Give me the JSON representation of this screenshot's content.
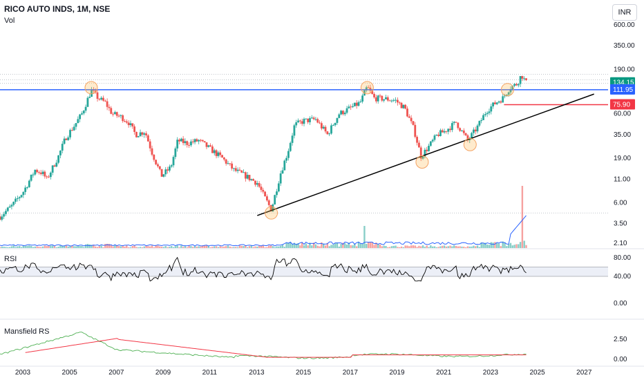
{
  "header": {
    "title": "RICO AUTO INDS, 1M, NSE",
    "volume_label": "Vol",
    "currency": "INR"
  },
  "panes": {
    "rsi_label": "RSI",
    "mansfield_label": "Mansfield RS"
  },
  "colors": {
    "up": "#26a69a",
    "down": "#ef5350",
    "blue": "#2962ff",
    "red": "#f23645",
    "teal": "#089981",
    "rsi": "#000000",
    "mansfield": "#4caf50",
    "mansfield_ma": "#f23645"
  },
  "chart_data": [
    {
      "type": "candlestick",
      "scale": "log",
      "x_range": [
        2002.0,
        2028.0
      ],
      "y_ticks": [
        600,
        350,
        190,
        60,
        35,
        19,
        11,
        6,
        3.5,
        2.1
      ],
      "y_tick_labels": [
        "600.00",
        "350.00",
        "190.00",
        "60.00",
        "35.00",
        "19.00",
        "11.00",
        "6.00",
        "3.50",
        "2.10"
      ],
      "x_ticks": [
        2003,
        2005,
        2007,
        2009,
        2011,
        2013,
        2015,
        2017,
        2019,
        2021,
        2023,
        2025,
        2027
      ],
      "price_labels": [
        {
          "value": 134.15,
          "label": "134.15",
          "color": "teal"
        },
        {
          "value": 111.95,
          "label": "111.95",
          "color": "blue"
        },
        {
          "value": 75.9,
          "label": "75.90",
          "color": "red"
        }
      ],
      "horizontal_line": {
        "value": 111.95
      },
      "dotted_lines": [
        167,
        145,
        132,
        4.6
      ],
      "red_level": {
        "value": 75.9,
        "x_start": 2023.55
      },
      "trendline": {
        "x1": 2013.0,
        "y1": 4.3,
        "x2": 2027.4,
        "y2": 100
      },
      "circles": [
        [
          2005.9,
          118
        ],
        [
          2017.7,
          118
        ],
        [
          2020.05,
          17.2
        ],
        [
          2022.1,
          27
        ],
        [
          2023.7,
          112
        ],
        [
          2013.6,
          4.6
        ]
      ],
      "path_points": [
        [
          2002.0,
          4.2
        ],
        [
          2002.5,
          5.5
        ],
        [
          2003.0,
          8
        ],
        [
          2003.5,
          14
        ],
        [
          2003.8,
          13
        ],
        [
          2004.0,
          11
        ],
        [
          2004.5,
          20
        ],
        [
          2004.8,
          32
        ],
        [
          2005.2,
          45
        ],
        [
          2005.5,
          60
        ],
        [
          2005.9,
          110
        ],
        [
          2006.2,
          90
        ],
        [
          2006.5,
          80
        ],
        [
          2006.8,
          60
        ],
        [
          2007.2,
          55
        ],
        [
          2007.5,
          48
        ],
        [
          2007.8,
          35
        ],
        [
          2008.2,
          38
        ],
        [
          2008.5,
          22
        ],
        [
          2008.9,
          12
        ],
        [
          2009.3,
          15
        ],
        [
          2009.6,
          30
        ],
        [
          2010.0,
          28
        ],
        [
          2010.5,
          30
        ],
        [
          2011.0,
          24
        ],
        [
          2011.5,
          19
        ],
        [
          2012.0,
          14
        ],
        [
          2012.5,
          12
        ],
        [
          2013.0,
          10
        ],
        [
          2013.3,
          7
        ],
        [
          2013.6,
          5
        ],
        [
          2014.0,
          13
        ],
        [
          2014.3,
          22
        ],
        [
          2014.6,
          45
        ],
        [
          2015.0,
          50
        ],
        [
          2015.5,
          52
        ],
        [
          2016.0,
          35
        ],
        [
          2016.5,
          60
        ],
        [
          2017.0,
          70
        ],
        [
          2017.4,
          80
        ],
        [
          2017.7,
          120
        ],
        [
          2018.0,
          90
        ],
        [
          2018.5,
          88
        ],
        [
          2018.9,
          85
        ],
        [
          2019.3,
          70
        ],
        [
          2019.7,
          40
        ],
        [
          2020.0,
          20
        ],
        [
          2020.3,
          25
        ],
        [
          2020.7,
          35
        ],
        [
          2021.0,
          38
        ],
        [
          2021.5,
          48
        ],
        [
          2022.0,
          30
        ],
        [
          2022.4,
          42
        ],
        [
          2022.8,
          65
        ],
        [
          2023.2,
          80
        ],
        [
          2023.5,
          90
        ],
        [
          2023.8,
          118
        ],
        [
          2024.1,
          130
        ],
        [
          2024.3,
          165
        ],
        [
          2024.5,
          134
        ]
      ]
    },
    {
      "type": "line",
      "name": "RSI",
      "y_ticks": [
        80,
        40
      ],
      "y_tick_labels": [
        "80.00",
        "40.00"
      ],
      "band": [
        40,
        60
      ]
    },
    {
      "type": "line",
      "name": "Mansfield RS",
      "y_ticks": [
        2.5,
        0
      ],
      "y_tick_labels": [
        "2.50",
        "0.00"
      ]
    }
  ],
  "extra_axis_labels": [
    "0.00"
  ]
}
